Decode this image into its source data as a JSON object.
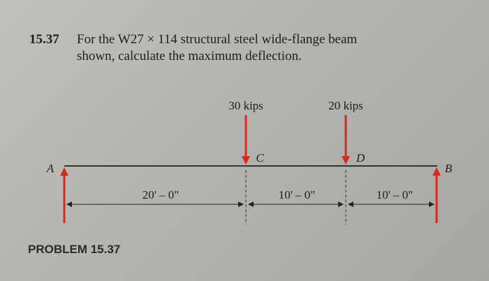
{
  "problem": {
    "number": "15.37",
    "text_line1": "For the W27 × 114 structural steel wide-flange beam",
    "text_line2": "shown, calculate the maximum deflection."
  },
  "diagram": {
    "loads": [
      {
        "label": "30 kips",
        "point": "C"
      },
      {
        "label": "20 kips",
        "point": "D"
      }
    ],
    "supports": [
      "A",
      "B"
    ],
    "dimensions": [
      "20' – 0\"",
      "10' – 0\"",
      "10' – 0\""
    ]
  },
  "caption": "PROBLEM 15.37"
}
